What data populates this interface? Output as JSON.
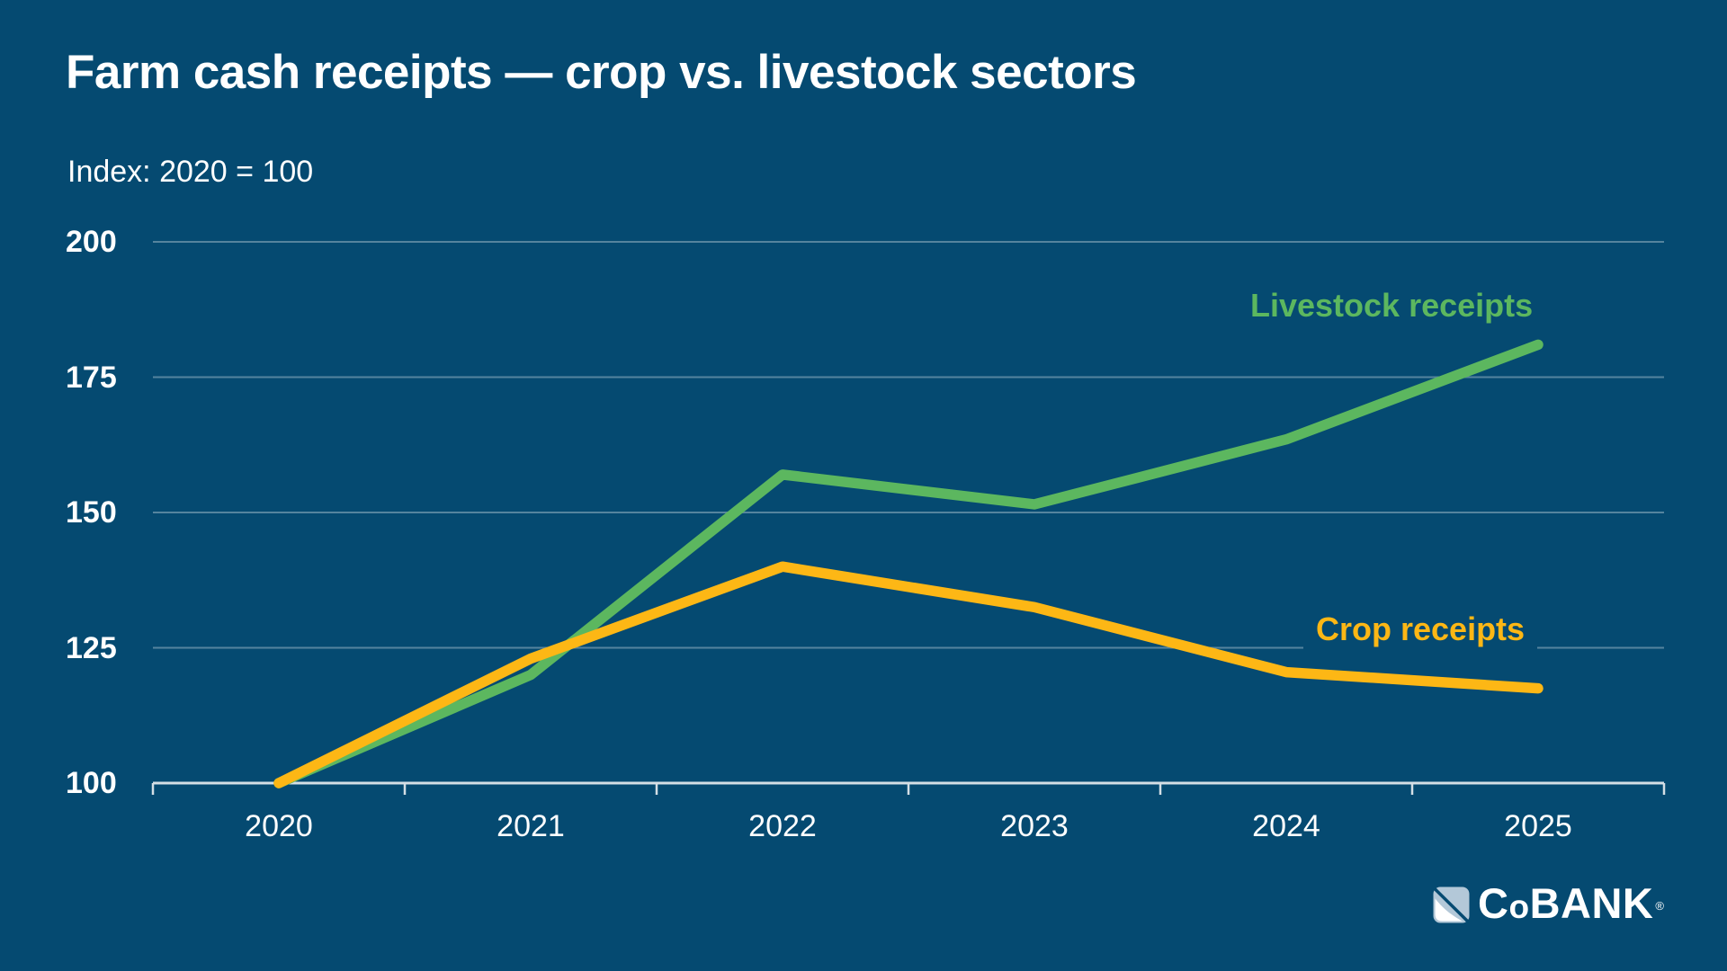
{
  "header": {
    "title": "Farm cash receipts — crop vs. livestock sectors",
    "subtitle": "Index: 2020 = 100"
  },
  "chart_data": {
    "type": "line",
    "title": "Farm cash receipts — crop vs. livestock sectors",
    "subtitle": "Index: 2020 = 100",
    "categories": [
      "2020",
      "2021",
      "2022",
      "2023",
      "2024",
      "2025"
    ],
    "series": [
      {
        "name": "Livestock receipts",
        "color": "#5CB75F",
        "values": [
          100,
          120,
          157,
          151.5,
          163.5,
          181
        ]
      },
      {
        "name": "Crop receipts",
        "color": "#FDB715",
        "values": [
          100,
          123,
          140,
          132.5,
          120.5,
          117.5
        ]
      }
    ],
    "y_ticks": [
      200,
      175,
      150,
      125,
      100
    ],
    "ylim": [
      100,
      200
    ],
    "xlabel": "",
    "ylabel": "Index: 2020 = 100",
    "grid": "horizontal",
    "legend_position": "inline-right"
  },
  "colors": {
    "background": "#054A71",
    "grid": "rgba(255,255,255,0.32)",
    "axis": "#D4DEE5",
    "text": "#FFFFFF",
    "livestock_line": "#5CB75F",
    "crop_line": "#FDB715",
    "logo_light_blue": "#B3C8D8"
  },
  "brand": {
    "name_parts": [
      "C",
      "o",
      "BANK"
    ],
    "registered": "®"
  }
}
